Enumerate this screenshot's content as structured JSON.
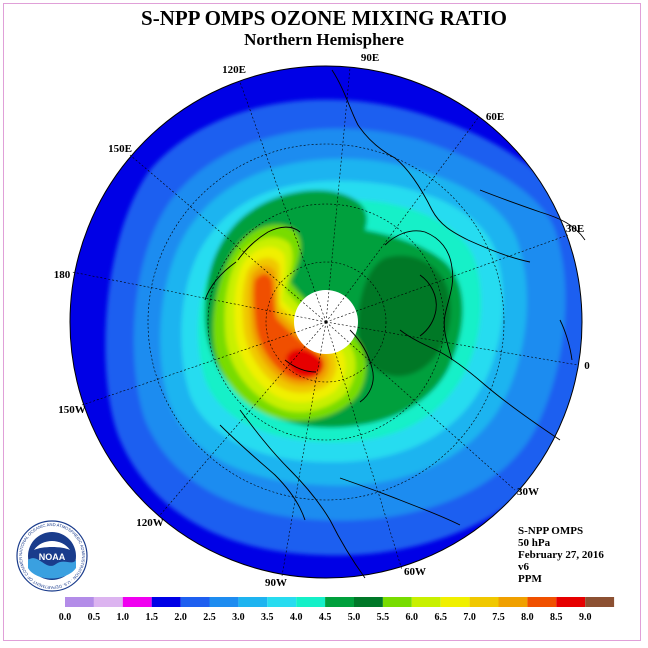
{
  "header": {
    "title": "S-NPP OMPS OZONE MIXING RATIO",
    "subtitle": "Northern Hemisphere"
  },
  "map": {
    "projection": "north-polar-stereographic",
    "longitude_labels": [
      "90E",
      "60E",
      "30E",
      "0",
      "30W",
      "60W",
      "90W",
      "120W",
      "150W",
      "180",
      "150E",
      "120E"
    ],
    "polar_gap_color": "#ffffff"
  },
  "info": {
    "instrument": "S-NPP OMPS",
    "level": "50 hPa",
    "date": "February 27, 2016",
    "version": "v6",
    "units": "PPM"
  },
  "colorbar": {
    "tick_labels": [
      "0.0",
      "0.5",
      "1.0",
      "1.5",
      "2.0",
      "2.5",
      "3.0",
      "3.5",
      "4.0",
      "4.5",
      "5.0",
      "5.5",
      "6.0",
      "6.5",
      "7.0",
      "7.5",
      "8.0",
      "8.5",
      "9.0"
    ],
    "colors": [
      "#b38ce8",
      "#dcb4f0",
      "#f000f0",
      "#0000e6",
      "#1e5ff0",
      "#1e8cf0",
      "#1eb4f0",
      "#28dcf0",
      "#14f0c8",
      "#00a03c",
      "#007828",
      "#78dc00",
      "#c8f000",
      "#f0f000",
      "#f0c800",
      "#f0a000",
      "#f05000",
      "#e60000",
      "#8c5032"
    ]
  },
  "logo": {
    "text": "NOAA",
    "ring_text": "NATIONAL OCEANIC AND ATMOSPHERIC ADMINISTRATION · U.S. DEPARTMENT OF COMMERCE"
  }
}
